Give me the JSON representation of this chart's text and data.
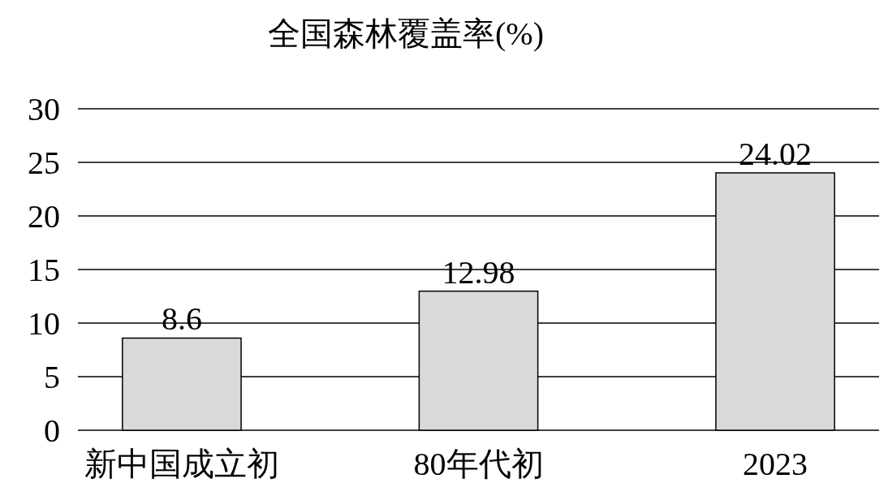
{
  "chart_data": {
    "type": "bar",
    "title": "全国森林覆盖率(%)",
    "categories": [
      "新中国成立初",
      "80年代初",
      "2023"
    ],
    "values": [
      8.6,
      12.98,
      24.02
    ],
    "color": "#d9d9d9",
    "ylim": [
      0,
      30
    ],
    "yticks": [
      0,
      5,
      10,
      15,
      20,
      25,
      30
    ],
    "grid": "y",
    "data_labels": true
  }
}
